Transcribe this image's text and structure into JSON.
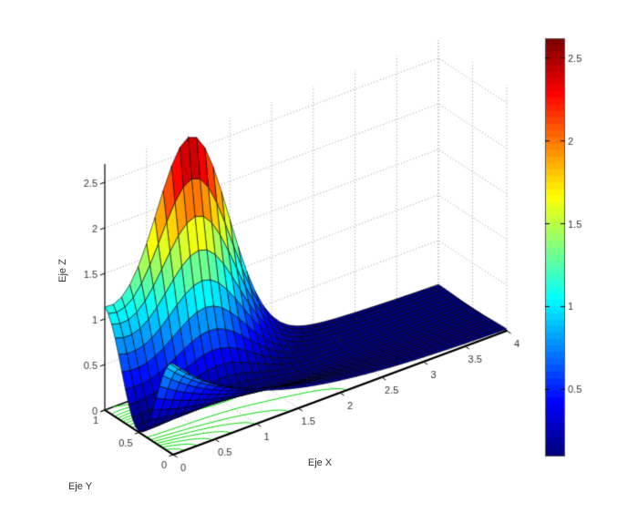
{
  "window": {
    "background": "#ffffff"
  },
  "chart_data": {
    "type": "surface",
    "title": "",
    "xlabel": "Eje X",
    "ylabel": "Eje Y",
    "zlabel": "Eje Z",
    "x_range": [
      0,
      4
    ],
    "y_range": [
      0,
      1
    ],
    "z_range": [
      0,
      2.7
    ],
    "x_ticks": [
      0,
      0.5,
      1,
      1.5,
      2,
      2.5,
      3,
      3.5,
      4
    ],
    "y_ticks": [
      0,
      0.5,
      1
    ],
    "z_ticks": [
      0,
      0.5,
      1,
      1.5,
      2,
      2.5
    ],
    "view": {
      "azimuth": -37.5,
      "elevation": 30
    },
    "grid": true,
    "grid_style": "dotted",
    "colormap": "jet",
    "color_range": [
      0.1,
      2.62
    ],
    "colorbar": {
      "location": "right",
      "ticks": [
        0.5,
        1,
        1.5,
        2,
        2.5
      ]
    },
    "surface_model": {
      "formula": "z = exp(-x)*cos(pi*y)^2 + 2.3*y^4*exp(-((x-1.05)/0.62)^2)",
      "base_amp": 1,
      "base_decay": 1,
      "ridge_amp": 2.3,
      "ridge_x_center": 1.05,
      "ridge_x_width": 0.62,
      "ridge_y_power": 4,
      "mesh_step_x": 0.1,
      "mesh_step_y": 0.05
    },
    "z_samples": {
      "x": [
        0,
        0.5,
        1,
        1.5,
        2,
        2.5,
        3,
        3.5,
        4
      ],
      "y": [
        0,
        0.25,
        0.5,
        0.75,
        1
      ],
      "z": [
        [
          1.0,
          0.61,
          0.37,
          0.22,
          0.14,
          0.08,
          0.05,
          0.03,
          0.02
        ],
        [
          0.5,
          0.31,
          0.19,
          0.12,
          0.07,
          0.04,
          0.02,
          0.02,
          0.01
        ],
        [
          0.01,
          0.07,
          0.14,
          0.08,
          0.01,
          0.0,
          0.0,
          0.0,
          0.0
        ],
        [
          0.54,
          0.63,
          0.91,
          0.54,
          0.14,
          0.04,
          0.02,
          0.02,
          0.01
        ],
        [
          1.13,
          1.65,
          2.65,
          1.58,
          0.36,
          0.09,
          0.05,
          0.03,
          0.02
        ]
      ]
    },
    "contour_projection": {
      "plane": "z=0",
      "color": "#00dd00",
      "level_min": 0.125,
      "level_step": 0.125,
      "level_max": 2.375
    },
    "styles": {
      "mesh_edge_color": "#000000",
      "axis_color": "#000000",
      "grid_color": "#9a9a9a",
      "tick_label_color": "#333333",
      "tick_label_size": 11,
      "colorbar_border": "#555555"
    }
  }
}
